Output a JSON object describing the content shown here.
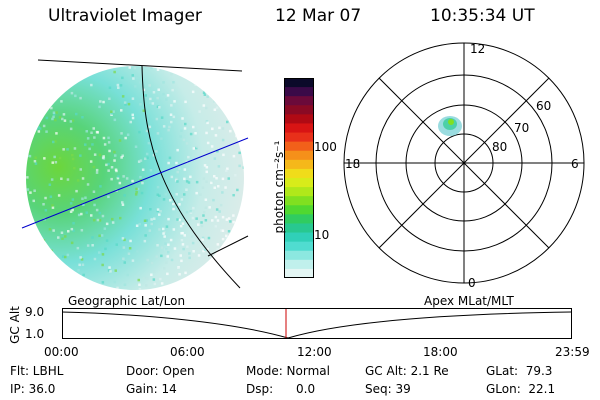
{
  "header": {
    "instrument": "Ultraviolet Imager",
    "date": "12 Mar 07",
    "time": "10:35:34 UT"
  },
  "colorbar": {
    "unit_label": "photon cm⁻²s⁻¹",
    "ticks": [
      "100",
      "10"
    ],
    "colors": [
      "#0b0a2a",
      "#3a0a48",
      "#6b0a3a",
      "#8a0a24",
      "#b00a14",
      "#d81414",
      "#e8301a",
      "#f2601a",
      "#f5901a",
      "#f5b81a",
      "#f0dc1a",
      "#d8ec1a",
      "#b0e81a",
      "#80e020",
      "#50d830",
      "#30cc60",
      "#28c890",
      "#30d0b8",
      "#50dcd0",
      "#8ce8e0",
      "#c0f0ec",
      "#e4f6f4"
    ]
  },
  "polar_plot": {
    "mlt_labels": {
      "top": "12",
      "left": "18",
      "right": "6",
      "bottom": "0"
    },
    "lat_labels": [
      "60",
      "70",
      "80"
    ]
  },
  "timeline": {
    "y_axis_label": "GC Alt",
    "y_tick": "9.0",
    "y_tick_bottom": "1.0",
    "left_title": "Geographic Lat/Lon",
    "right_title": "Apex MLat/MLT",
    "x_ticks": [
      "00:00",
      "06:00",
      "12:00",
      "18:00",
      "23:59"
    ]
  },
  "status": {
    "flt": "Flt: LBHL",
    "ip": "IP: 36.0",
    "door": "Door: Open",
    "gain": "Gain: 14",
    "mode": "Mode: Normal",
    "dsp": "Dsp:      0.0",
    "gc_alt": "GC Alt: 2.1 Re",
    "seq": "Seq: 39",
    "glat": "GLat:  79.3",
    "glon": "GLon:  22.1"
  }
}
